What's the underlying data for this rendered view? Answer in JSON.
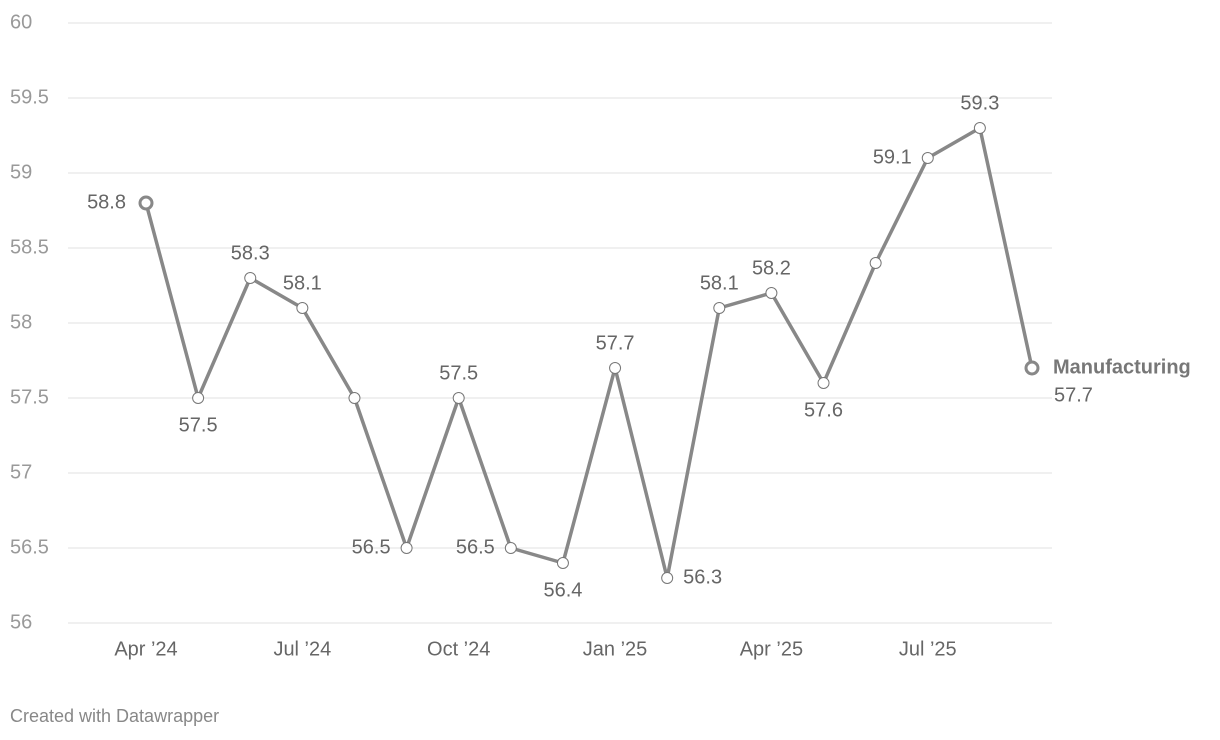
{
  "chart_data": {
    "type": "line",
    "categories": [
      "Apr ’24",
      null,
      null,
      "Jul ’24",
      null,
      null,
      "Oct ’24",
      null,
      null,
      "Jan ’25",
      null,
      null,
      "Apr ’25",
      null,
      null,
      "Jul ’25",
      null,
      null
    ],
    "series": [
      {
        "name": "Manufacturing",
        "color": "#888888",
        "values": [
          58.8,
          57.5,
          58.3,
          58.1,
          57.5,
          56.5,
          57.5,
          56.5,
          56.4,
          57.7,
          56.3,
          58.1,
          58.2,
          57.6,
          58.4,
          59.1,
          59.3,
          57.7
        ],
        "value_labels": [
          "58.8",
          "57.5",
          "58.3",
          "58.1",
          null,
          "56.5",
          "57.5",
          "56.5",
          "56.4",
          "57.7",
          "56.3",
          "58.1",
          "58.2",
          "57.6",
          null,
          "59.1",
          "59.3",
          "57.7"
        ]
      }
    ],
    "ylim": [
      56,
      60
    ],
    "yticks": [
      56,
      56.5,
      57,
      57.5,
      58,
      58.5,
      59,
      59.5,
      60
    ],
    "grid": true,
    "footer": "Created with Datawrapper"
  }
}
